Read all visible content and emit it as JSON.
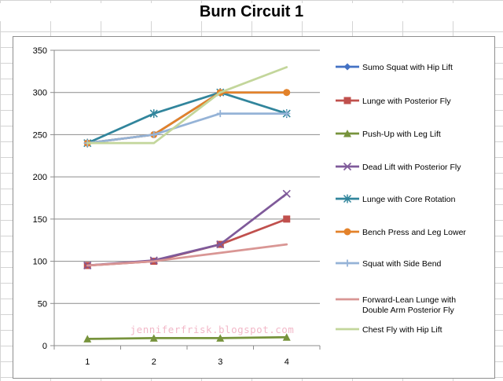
{
  "title": "Burn Circuit 1",
  "watermark": "jenniferfrisk.blogspot.com",
  "chart_data": {
    "type": "line",
    "title": "Burn Circuit 1",
    "xlabel": "",
    "ylabel": "",
    "x": [
      1,
      2,
      3,
      4
    ],
    "ylim": [
      0,
      350
    ],
    "yticks": [
      0,
      50,
      100,
      150,
      200,
      250,
      300,
      350
    ],
    "grid": "horizontal",
    "legend": "right",
    "series": [
      {
        "name": "Sumo Squat with Hip Lift",
        "values": [
          240,
          250,
          300,
          300
        ],
        "color": "#4472c4",
        "marker": "diamond"
      },
      {
        "name": "Lunge with Posterior Fly",
        "values": [
          95,
          100,
          120,
          150
        ],
        "color": "#c0504d",
        "marker": "square"
      },
      {
        "name": "Push-Up with Leg Lift",
        "values": [
          8,
          9,
          9,
          10
        ],
        "color": "#77933c",
        "marker": "triangle"
      },
      {
        "name": "Dead Lift with Posterior Fly",
        "values": [
          95,
          101,
          120,
          180
        ],
        "color": "#7f5a9a",
        "marker": "x"
      },
      {
        "name": "Lunge with Core Rotation",
        "values": [
          240,
          275,
          300,
          275
        ],
        "color": "#31859c",
        "marker": "star"
      },
      {
        "name": "Bench Press and Leg Lower",
        "values": [
          240,
          250,
          300,
          300
        ],
        "color": "#e3822a",
        "marker": "circle"
      },
      {
        "name": "Squat with Side Bend",
        "values": [
          240,
          250,
          275,
          275
        ],
        "color": "#95b3d7",
        "marker": "plus"
      },
      {
        "name": "Forward-Lean Lunge with Double Arm Posterior Fly",
        "values": [
          95,
          100,
          110,
          120
        ],
        "color": "#d99694",
        "marker": "none"
      },
      {
        "name": "Chest Fly with Hip Lift",
        "values": [
          240,
          240,
          300,
          330
        ],
        "color": "#c3d69b",
        "marker": "none"
      }
    ],
    "legend_lines": [
      [
        "Sumo Squat with Hip Lift"
      ],
      [
        "Lunge with Posterior Fly"
      ],
      [
        "Push-Up with Leg Lift"
      ],
      [
        "Dead Lift with Posterior Fly"
      ],
      [
        "Lunge with Core Rotation"
      ],
      [
        "Bench Press and Leg Lower"
      ],
      [
        "Squat with Side Bend"
      ],
      [
        "Forward-Lean Lunge with",
        "Double Arm Posterior Fly"
      ],
      [
        "Chest Fly with Hip Lift"
      ]
    ]
  }
}
